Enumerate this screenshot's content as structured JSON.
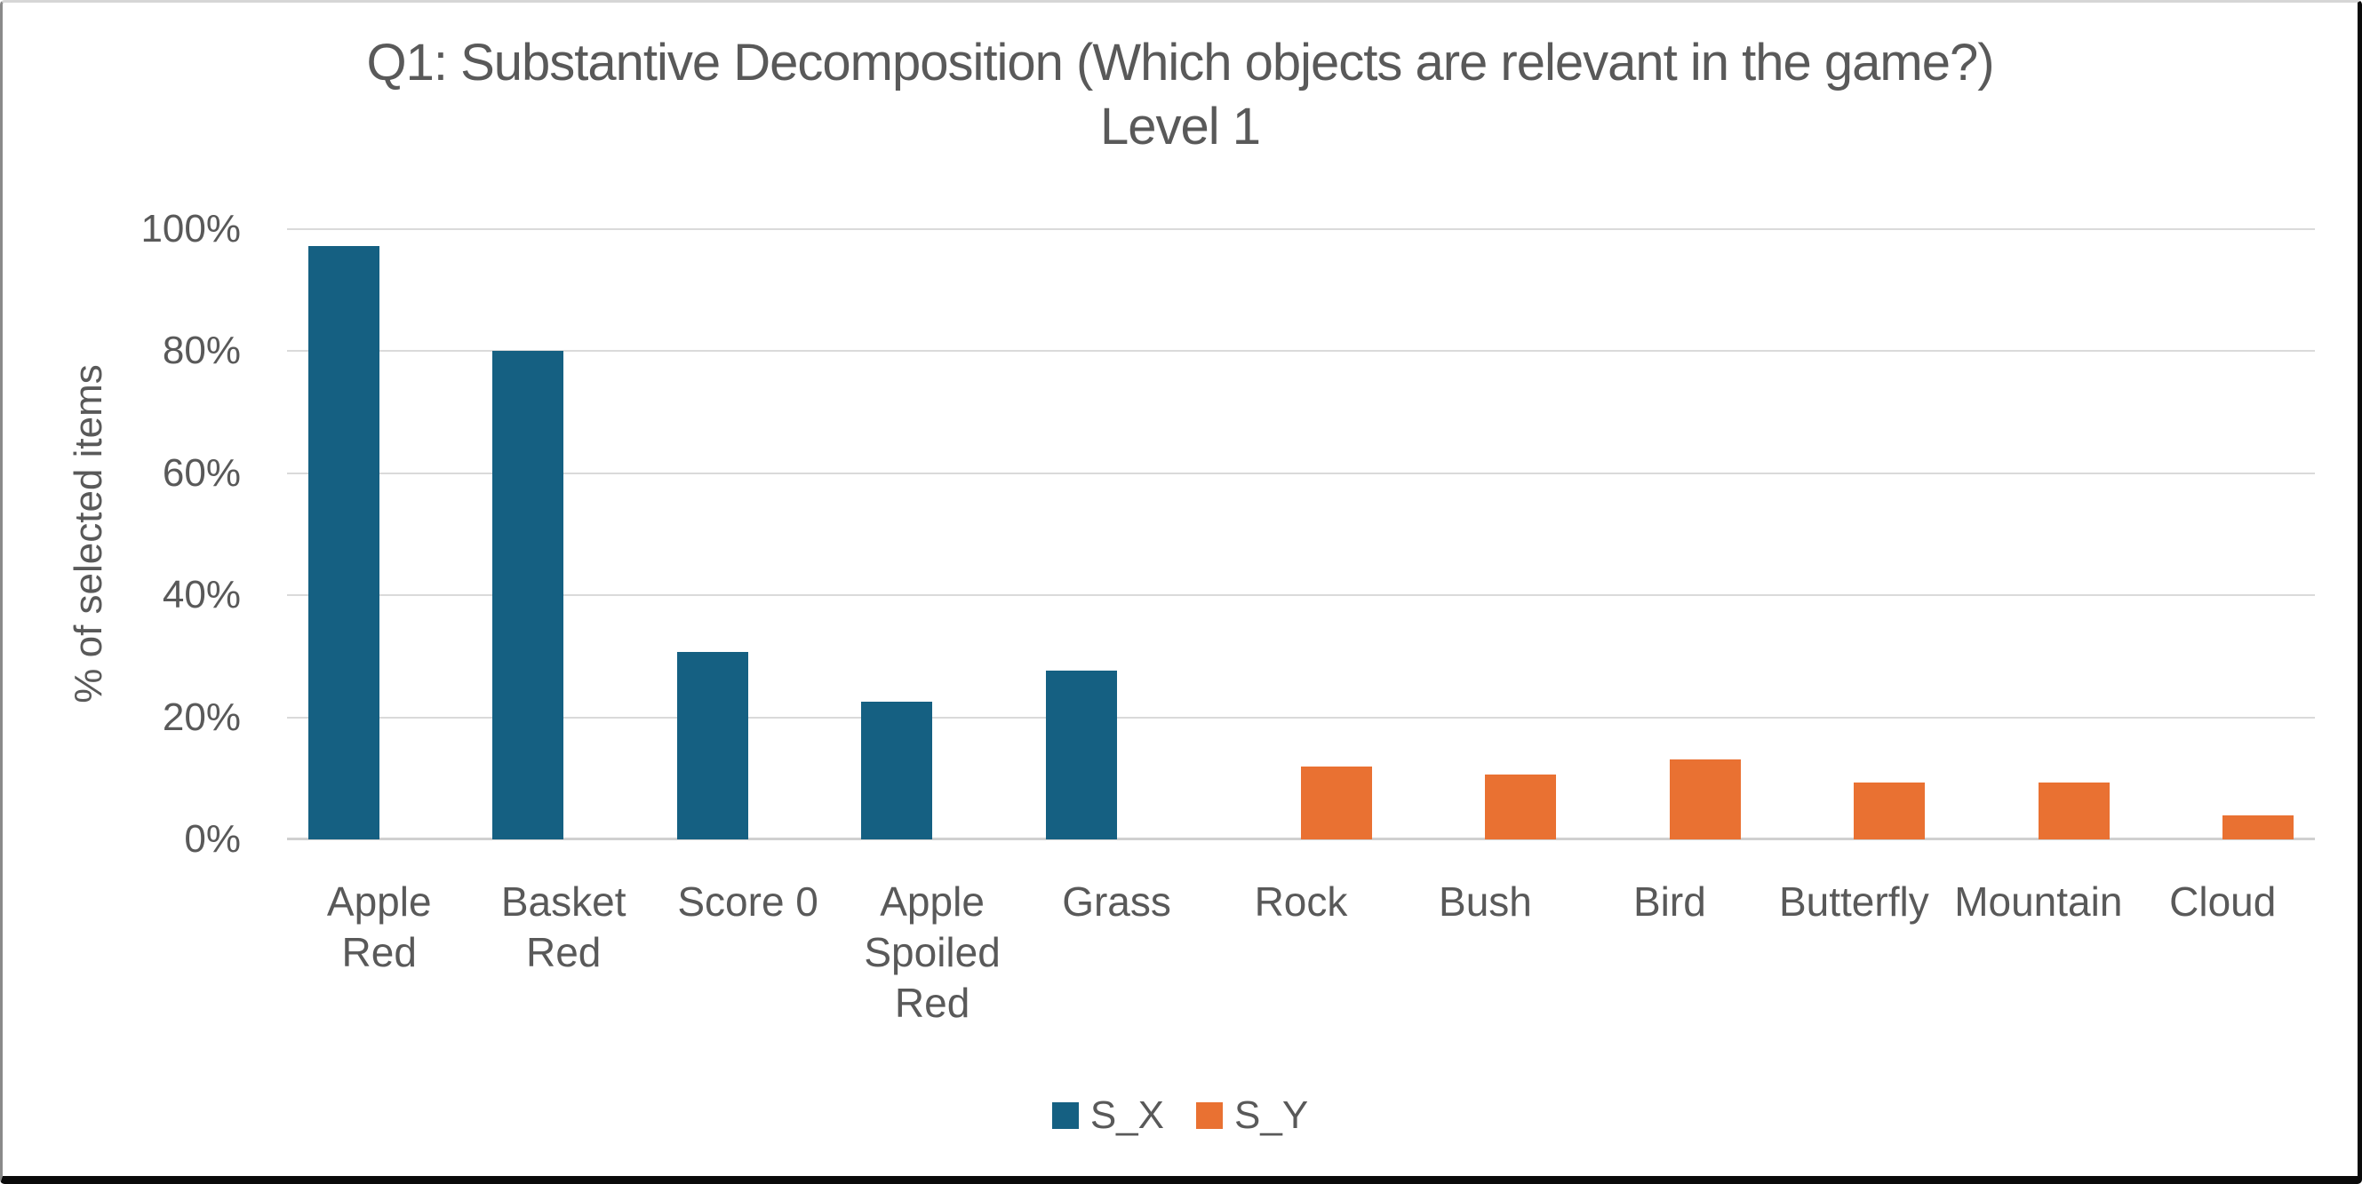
{
  "chart_data": {
    "type": "bar",
    "title": "Q1: Substantive Decomposition (Which objects are relevant in the game?)",
    "subtitle": "Level 1",
    "ylabel": "% of selected items",
    "xlabel": "",
    "ylim": [
      0,
      100
    ],
    "ytick_step": 20,
    "ytick_labels": [
      "0%",
      "20%",
      "40%",
      "60%",
      "80%",
      "100%"
    ],
    "grid": true,
    "legend_position": "bottom-center",
    "categories": [
      "Apple Red",
      "Basket Red",
      "Score 0",
      "Apple Spoiled Red",
      "Grass",
      "Rock",
      "Bush",
      "Bird",
      "Butterfly",
      "Mountain",
      "Cloud"
    ],
    "category_display": [
      "Apple\nRed",
      "Basket\nRed",
      "Score 0",
      "Apple\nSpoiled\nRed",
      "Grass",
      "Rock",
      "Bush",
      "Bird",
      "Butterfly",
      "Mountain",
      "Cloud"
    ],
    "series": [
      {
        "name": "S_X",
        "color": "#156082",
        "values": [
          97.2,
          80.0,
          30.7,
          22.6,
          27.7,
          null,
          null,
          null,
          null,
          null,
          null
        ]
      },
      {
        "name": "S_Y",
        "color": "#E97132",
        "values": [
          null,
          null,
          null,
          null,
          null,
          11.9,
          10.6,
          13.1,
          9.3,
          9.3,
          3.9
        ]
      }
    ]
  },
  "style_colors": {
    "text": "#595959",
    "gridline": "#DADADA",
    "axis_line": "#D0D0D0",
    "background": "#FFFFFF"
  }
}
